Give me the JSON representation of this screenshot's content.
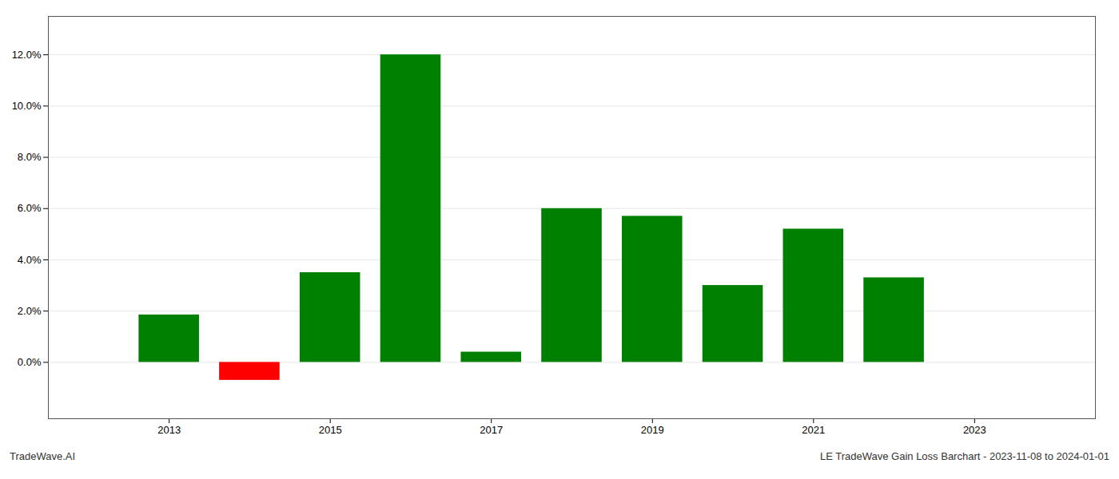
{
  "chart_data": {
    "type": "bar",
    "x": [
      2013,
      2014,
      2015,
      2016,
      2017,
      2018,
      2019,
      2020,
      2021,
      2022
    ],
    "values": [
      0.0185,
      -0.007,
      0.035,
      0.12,
      0.004,
      0.06,
      0.057,
      0.03,
      0.052,
      0.033
    ],
    "colors": [
      "#008000",
      "#ff0000",
      "#008000",
      "#008000",
      "#008000",
      "#008000",
      "#008000",
      "#008000",
      "#008000",
      "#008000"
    ],
    "xlim": [
      2011.5,
      2024.5
    ],
    "xticks": [
      2013,
      2015,
      2017,
      2019,
      2021,
      2023
    ],
    "ylim": [
      -0.022,
      0.135
    ],
    "yticks": [
      {
        "value": 0.0,
        "label": "0.0%"
      },
      {
        "value": 0.02,
        "label": "2.0%"
      },
      {
        "value": 0.04,
        "label": "4.0%"
      },
      {
        "value": 0.06,
        "label": "6.0%"
      },
      {
        "value": 0.08,
        "label": "8.0%"
      },
      {
        "value": 0.1,
        "label": "10.0%"
      },
      {
        "value": 0.12,
        "label": "12.0%"
      }
    ],
    "grid": true,
    "annotations": [
      "TradeWave.AI",
      "LE TradeWave Gain Loss Barchart - 2023-11-08 to 2024-01-01"
    ]
  }
}
